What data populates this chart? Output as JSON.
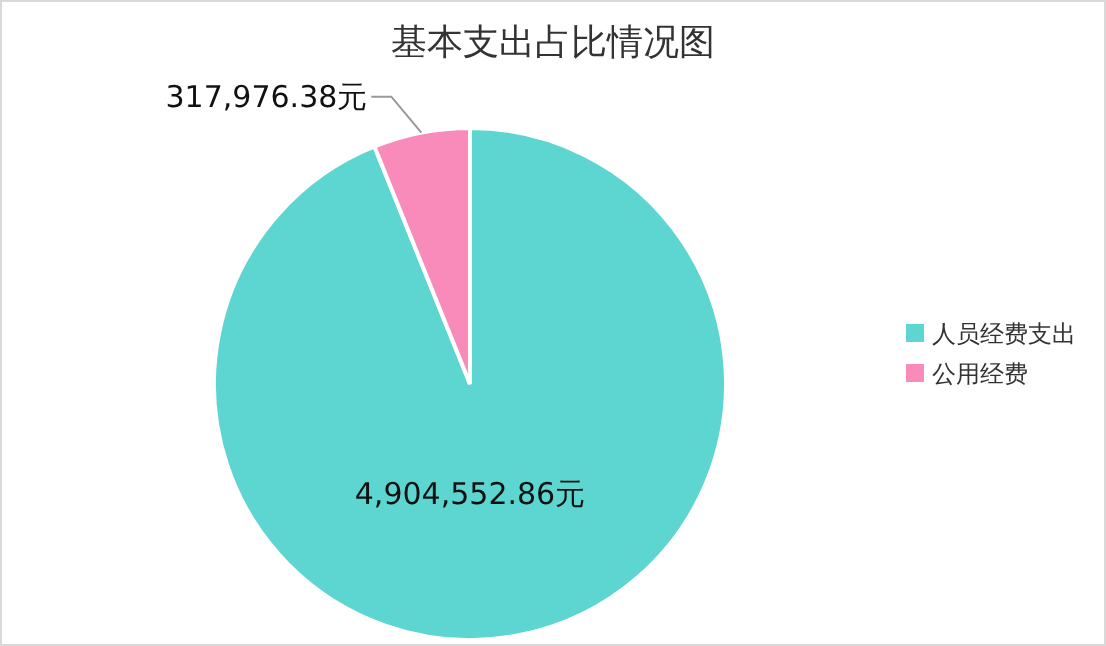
{
  "chart_data": {
    "type": "pie",
    "title": "基本支出占比情况图",
    "categories": [
      "人员经费支出",
      "公用经费"
    ],
    "values": [
      4904552.86,
      317976.38
    ],
    "colors": [
      "#5dd5d0",
      "#f98bbb"
    ],
    "value_labels": [
      "4,904,552.86元",
      "317,976.38元"
    ],
    "legend": "right"
  }
}
